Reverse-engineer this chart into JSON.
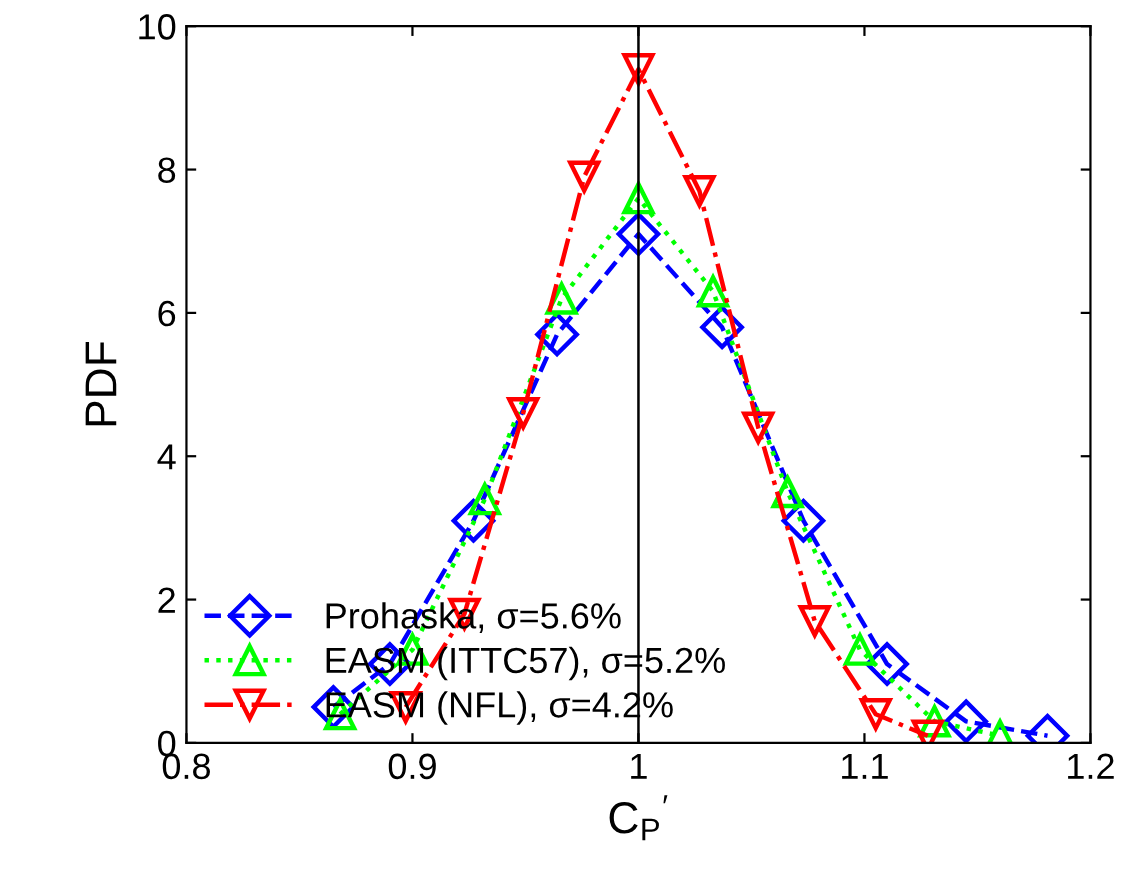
{
  "chart_data": {
    "type": "line",
    "xlabel": "C$_{P}$$^{′}$",
    "ylabel": "PDF",
    "xlim": [
      0.8,
      1.2
    ],
    "xticks": [
      0.8,
      0.9,
      1,
      1.1,
      1.2
    ],
    "ylim": [
      0,
      10
    ],
    "yticks": [
      0,
      2,
      4,
      6,
      8,
      10
    ],
    "grid": false,
    "legend": "bottom left",
    "ref_lines": [
      {
        "axis": "x",
        "value": 1,
        "color": "#000000",
        "line_style": "solid"
      }
    ],
    "series": [
      {
        "name": "Prohaska, σ=5.6%",
        "color": "#0000ff",
        "marker": "diamond",
        "line_style": "dashed",
        "x": [
          0.865,
          0.89,
          0.927,
          0.964,
          1.0,
          1.037,
          1.073,
          1.11,
          1.145,
          1.181
        ],
        "values": [
          0.5,
          1.1,
          3.1,
          5.7,
          7.1,
          5.8,
          3.1,
          1.1,
          0.3,
          0.1
        ]
      },
      {
        "name": "EASM (ITTC57), σ=5.2%",
        "color": "#00ff00",
        "marker": "triangle",
        "line_style": "dotted",
        "x": [
          0.868,
          0.9,
          0.932,
          0.966,
          1.0,
          1.033,
          1.066,
          1.098,
          1.131,
          1.16
        ],
        "values": [
          0.4,
          1.3,
          3.4,
          6.2,
          7.6,
          6.3,
          3.5,
          1.3,
          0.3,
          0.1
        ]
      },
      {
        "name": "EASM (NFL), σ=4.2%",
        "color": "#ff0000",
        "marker": "triangle_down",
        "line_style": "dashdot",
        "x": [
          0.897,
          0.923,
          0.949,
          0.976,
          1.0,
          1.027,
          1.053,
          1.078,
          1.105,
          1.128
        ],
        "values": [
          0.5,
          1.8,
          4.6,
          7.9,
          9.4,
          7.7,
          4.4,
          1.7,
          0.4,
          0.1
        ]
      }
    ]
  }
}
